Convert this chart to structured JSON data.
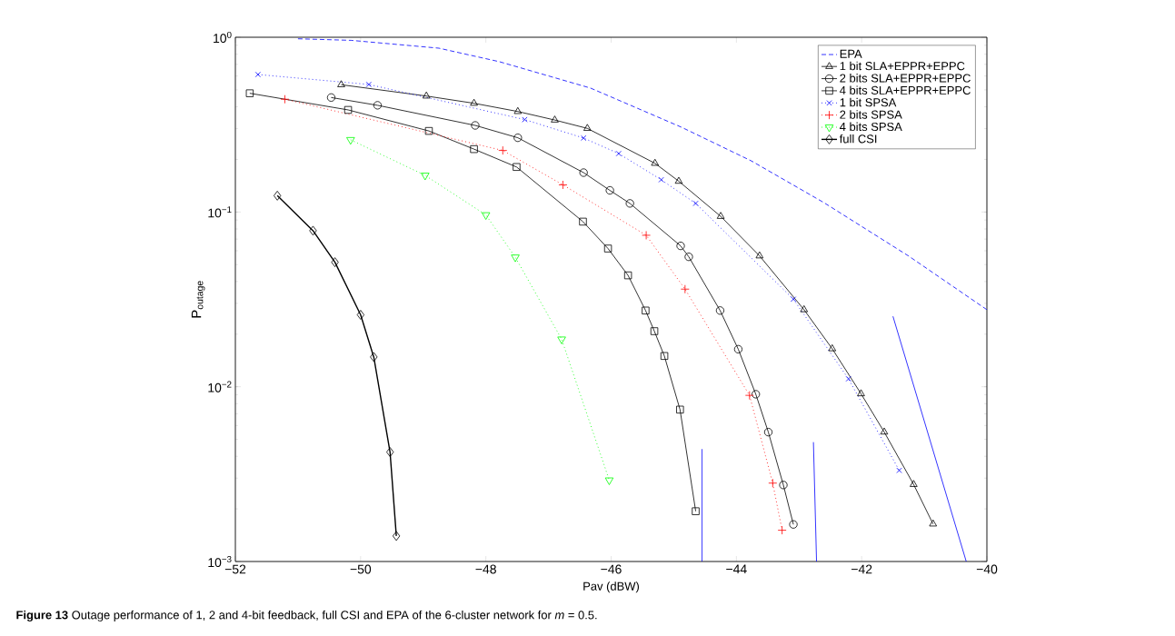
{
  "chart_data": {
    "type": "line",
    "xlabel": "Pav (dBW)",
    "ylabel": "P$_{outage}$",
    "log": "y",
    "legend": "top right",
    "grid": false,
    "xlim": [
      -52,
      -40
    ],
    "ylim": [
      0.001,
      1
    ],
    "xticks": [
      {
        "value": -52,
        "label": "−52"
      },
      {
        "value": -50,
        "label": "−50"
      },
      {
        "value": -48,
        "label": "−48"
      },
      {
        "value": -46,
        "label": "−46"
      },
      {
        "value": -44,
        "label": "−44"
      },
      {
        "value": -42,
        "label": "−42"
      },
      {
        "value": -40,
        "label": "−40"
      }
    ],
    "yticks": [
      {
        "value": 0.001,
        "label": "10$^{−3}$"
      },
      {
        "value": 0.01,
        "label": "10$^{−2}$"
      },
      {
        "value": 0.1,
        "label": "10$^{−1}$"
      },
      {
        "value": 1,
        "label": "10$^{0}$"
      }
    ],
    "annotations": [
      "**Figure 13** Outage performance of 1, 2 and 4-bit feedback, full CSI and EPA of the 6-cluster network for *m* = 0.5."
    ],
    "series": [
      {
        "name": "EPA",
        "color": "#0000ff",
        "line_style": "dashed",
        "marker": "none",
        "x": [
          -51.0,
          -50.15,
          -48.75,
          -47.78,
          -46.33,
          -44.88,
          -43.76,
          -42.6,
          -41.25,
          -40.0
        ],
        "values": [
          0.98,
          0.96,
          0.866,
          0.724,
          0.512,
          0.306,
          0.196,
          0.113,
          0.056,
          0.0276
        ]
      },
      {
        "name": "1 bit SLA+EPPR+EPPC",
        "color": "#000000",
        "line_style": "solid",
        "marker": "triangle",
        "x": [
          -50.31,
          -48.95,
          -48.19,
          -47.49,
          -46.9,
          -46.38,
          -45.3,
          -44.92,
          -44.25,
          -43.63,
          -42.92,
          -42.47,
          -42.01,
          -41.64,
          -41.17,
          -40.86
        ],
        "values": [
          0.535,
          0.461,
          0.419,
          0.376,
          0.336,
          0.301,
          0.19,
          0.15,
          0.0944,
          0.0561,
          0.0276,
          0.0165,
          0.00912,
          0.00551,
          0.00276,
          0.00164
        ]
      },
      {
        "name": "2 bits SLA+EPPR+EPPC",
        "color": "#000000",
        "line_style": "solid",
        "marker": "circle",
        "x": [
          -50.47,
          -49.73,
          -48.17,
          -47.49,
          -46.44,
          -46.02,
          -45.7,
          -44.89,
          -44.76,
          -44.26,
          -43.97,
          -43.69,
          -43.49,
          -43.25,
          -43.09
        ],
        "values": [
          0.452,
          0.408,
          0.313,
          0.266,
          0.168,
          0.133,
          0.112,
          0.064,
          0.0554,
          0.0273,
          0.0164,
          0.00906,
          0.0055,
          0.00274,
          0.00163
        ]
      },
      {
        "name": "4 bits SLA+EPPR+EPPC",
        "color": "#000000",
        "line_style": "solid",
        "marker": "square",
        "x": [
          -51.77,
          -50.2,
          -48.91,
          -48.19,
          -47.51,
          -46.45,
          -46.05,
          -45.73,
          -45.45,
          -45.31,
          -45.15,
          -44.9,
          -44.65
        ],
        "values": [
          0.478,
          0.384,
          0.291,
          0.229,
          0.181,
          0.0881,
          0.0618,
          0.0434,
          0.0273,
          0.0208,
          0.015,
          0.0074,
          0.00194
        ]
      },
      {
        "name": "1 bit SPSA",
        "color": "#0000ff",
        "line_style": "dotted",
        "marker": "cross",
        "x": [
          -51.64,
          -49.87,
          -47.38,
          -46.44,
          -45.88,
          -45.2,
          -44.65,
          -43.09,
          -42.21,
          -41.4
        ],
        "values": [
          0.612,
          0.537,
          0.338,
          0.265,
          0.216,
          0.153,
          0.112,
          0.0317,
          0.0111,
          0.00332
        ]
      },
      {
        "name": "2 bits SPSA",
        "color": "#ff0000",
        "line_style": "dotted",
        "marker": "plus",
        "x": [
          -51.21,
          -47.73,
          -46.77,
          -45.44,
          -44.82,
          -43.79,
          -43.42,
          -43.27
        ],
        "values": [
          0.442,
          0.225,
          0.143,
          0.0736,
          0.0362,
          0.00893,
          0.00281,
          0.00151
        ]
      },
      {
        "name": "4 bits SPSA",
        "color": "#00ff00",
        "line_style": "dotted",
        "marker": "triangle down",
        "x": [
          -50.16,
          -48.97,
          -48.0,
          -47.53,
          -46.79,
          -46.03
        ],
        "values": [
          0.259,
          0.162,
          0.0962,
          0.0551,
          0.0187,
          0.00292
        ]
      },
      {
        "name": "full CSI",
        "color": "#000000",
        "line_style": "solid",
        "marker": "diamond",
        "x": [
          -51.33,
          -50.76,
          -50.41,
          -50.0,
          -49.79,
          -49.53,
          -49.43
        ],
        "values": [
          0.124,
          0.0782,
          0.0516,
          0.0258,
          0.0148,
          0.00423,
          0.0014
        ]
      },
      {
        "color": "#0000ff",
        "line_style": "solid",
        "marker": "none",
        "x": [
          -44.55,
          -44.55
        ],
        "values": [
          0.0044,
          0.001
        ]
      },
      {
        "color": "#0000ff",
        "line_style": "solid",
        "marker": "none",
        "x": [
          -42.77,
          -42.72
        ],
        "values": [
          0.00482,
          0.001
        ]
      },
      {
        "color": "#0000ff",
        "line_style": "solid",
        "marker": "none",
        "x": [
          -41.5,
          -40.33
        ],
        "values": [
          0.0253,
          0.001
        ]
      }
    ]
  }
}
